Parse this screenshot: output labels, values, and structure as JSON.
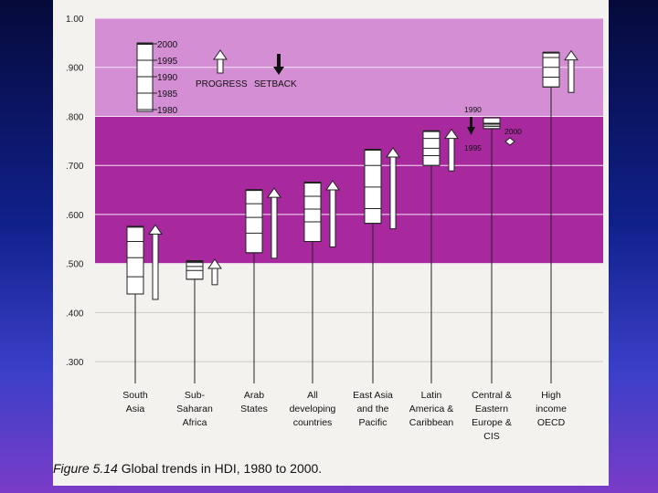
{
  "caption": {
    "figure": "Figure 5.14",
    "text": "Global trends in HDI, 1980 to 2000."
  },
  "legend": {
    "years": [
      "2000",
      "1995",
      "1990",
      "1985",
      "1980"
    ],
    "progress_label": "PROGRESS",
    "setback_label": "SETBACK"
  },
  "colors": {
    "band_light": "#d48fd4",
    "band_dark": "#a8289e",
    "box_fill": "#ffffff",
    "box_stroke": "#222222"
  },
  "chart_data": {
    "type": "box",
    "title": "Global trends in HDI, 1980 to 2000.",
    "ylim": [
      0.25,
      1.0
    ],
    "yticks": [
      {
        "value": 1.0,
        "label": "1.00"
      },
      {
        "value": 0.9,
        "label": ".900"
      },
      {
        "value": 0.8,
        "label": ".800"
      },
      {
        "value": 0.7,
        "label": ".700"
      },
      {
        "value": 0.6,
        "label": ".600"
      },
      {
        "value": 0.5,
        "label": ".500"
      },
      {
        "value": 0.4,
        "label": ".400"
      },
      {
        "value": 0.3,
        "label": ".300"
      }
    ],
    "bands": [
      {
        "from": 0.8,
        "to": 1.0,
        "color": "band_light"
      },
      {
        "from": 0.5,
        "to": 0.8,
        "color": "band_dark"
      }
    ],
    "groups": [
      {
        "name": [
          "South",
          "Asia"
        ],
        "years": {
          "1980": 0.438,
          "1985": 0.473,
          "1990": 0.512,
          "1995": 0.545,
          "2000": 0.575
        },
        "trend": "progress"
      },
      {
        "name": [
          "Sub-",
          "Saharan",
          "Africa"
        ],
        "years": {
          "1980": 0.468,
          "1985": 0.486,
          "1990": 0.494,
          "1995": 0.502,
          "2000": 0.505
        },
        "trend": "progress"
      },
      {
        "name": [
          "Arab",
          "States"
        ],
        "years": {
          "1980": 0.522,
          "1985": 0.562,
          "1990": 0.594,
          "1995": 0.622,
          "2000": 0.65
        },
        "trend": "progress"
      },
      {
        "name": [
          "All",
          "developing",
          "countries"
        ],
        "years": {
          "1980": 0.545,
          "1985": 0.585,
          "1990": 0.611,
          "1995": 0.637,
          "2000": 0.665
        },
        "trend": "progress"
      },
      {
        "name": [
          "East Asia",
          "and the",
          "Pacific"
        ],
        "years": {
          "1980": 0.582,
          "1985": 0.612,
          "1990": 0.656,
          "1995": 0.7,
          "2000": 0.732
        },
        "trend": "progress"
      },
      {
        "name": [
          "Latin",
          "America &",
          "Caribbean"
        ],
        "years": {
          "1980": 0.7,
          "1985": 0.72,
          "1990": 0.735,
          "1995": 0.755,
          "2000": 0.77
        },
        "trend": "progress"
      },
      {
        "name": [
          "Central &",
          "Eastern",
          "Europe &",
          "CIS"
        ],
        "years": {
          "1980": 0.775,
          "1985": 0.78,
          "1990": 0.797,
          "1995": 0.78,
          "2000": 0.785
        },
        "trend": "setback",
        "annotations": [
          "1990",
          "1995",
          "2000"
        ]
      },
      {
        "name": [
          "High",
          "income",
          "OECD"
        ],
        "years": {
          "1980": 0.86,
          "1985": 0.88,
          "1990": 0.9,
          "1995": 0.92,
          "2000": 0.93
        },
        "trend": "progress"
      }
    ]
  }
}
